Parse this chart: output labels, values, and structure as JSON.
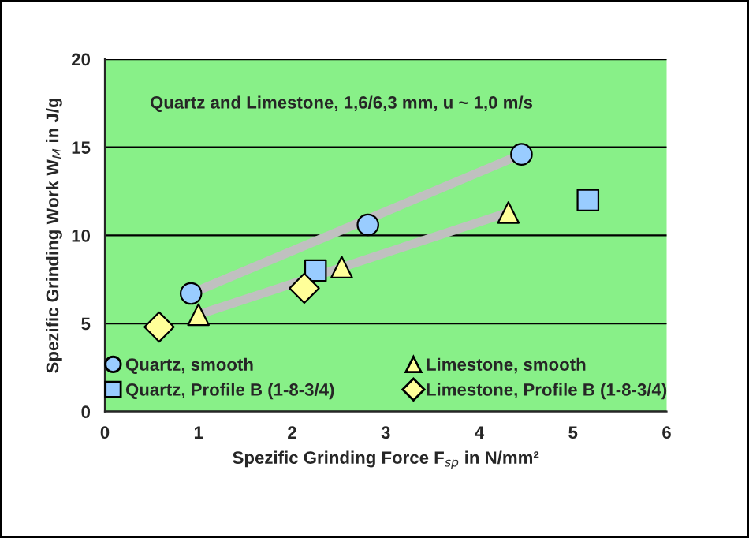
{
  "chart_data": {
    "type": "scatter",
    "xlabel": "Spezific Grinding Force F$_{sp}$ in N/mm²",
    "ylabel": "Spezific Grinding Work W$_{M}$ in J/g",
    "annotations": [
      "Quartz and Limestone, 1,6/6,3 mm, u ~ 1,0 m/s"
    ],
    "xlim": [
      0,
      6
    ],
    "xticks": [
      0,
      1,
      2,
      3,
      4,
      5,
      6
    ],
    "ylim": [
      0,
      20
    ],
    "yticks": [
      0,
      5,
      10,
      15,
      20
    ],
    "grid": "y",
    "legend": "bottom",
    "series": [
      {
        "type": "line",
        "color": "#c0c0c0",
        "x": [
          0.92,
          4.45
        ],
        "values": [
          6.7,
          14.6
        ]
      },
      {
        "type": "line",
        "color": "#c0c0c0",
        "x": [
          1.0,
          4.31
        ],
        "values": [
          5.5,
          11.3
        ]
      },
      {
        "name": "Quartz, smooth",
        "color": "#99ccff",
        "marker": "circle",
        "x": [
          0.92,
          2.81,
          4.45
        ],
        "values": [
          6.7,
          10.6,
          14.6
        ]
      },
      {
        "name": "Quartz, Profile B (1-8-3/4)",
        "color": "#99ccff",
        "marker": "square",
        "x": [
          2.25,
          5.16
        ],
        "values": [
          8.0,
          12.0
        ]
      },
      {
        "name": "Limestone, smooth",
        "color": "#ffff99",
        "marker": "triangle",
        "x": [
          1.0,
          2.53,
          4.31
        ],
        "values": [
          5.5,
          8.2,
          11.3
        ]
      },
      {
        "name": "Limestone, Profile B (1-8-3/4)",
        "color": "#ffff99",
        "marker": "diamond",
        "x": [
          0.58,
          2.13
        ],
        "values": [
          4.8,
          7.0
        ]
      }
    ]
  }
}
